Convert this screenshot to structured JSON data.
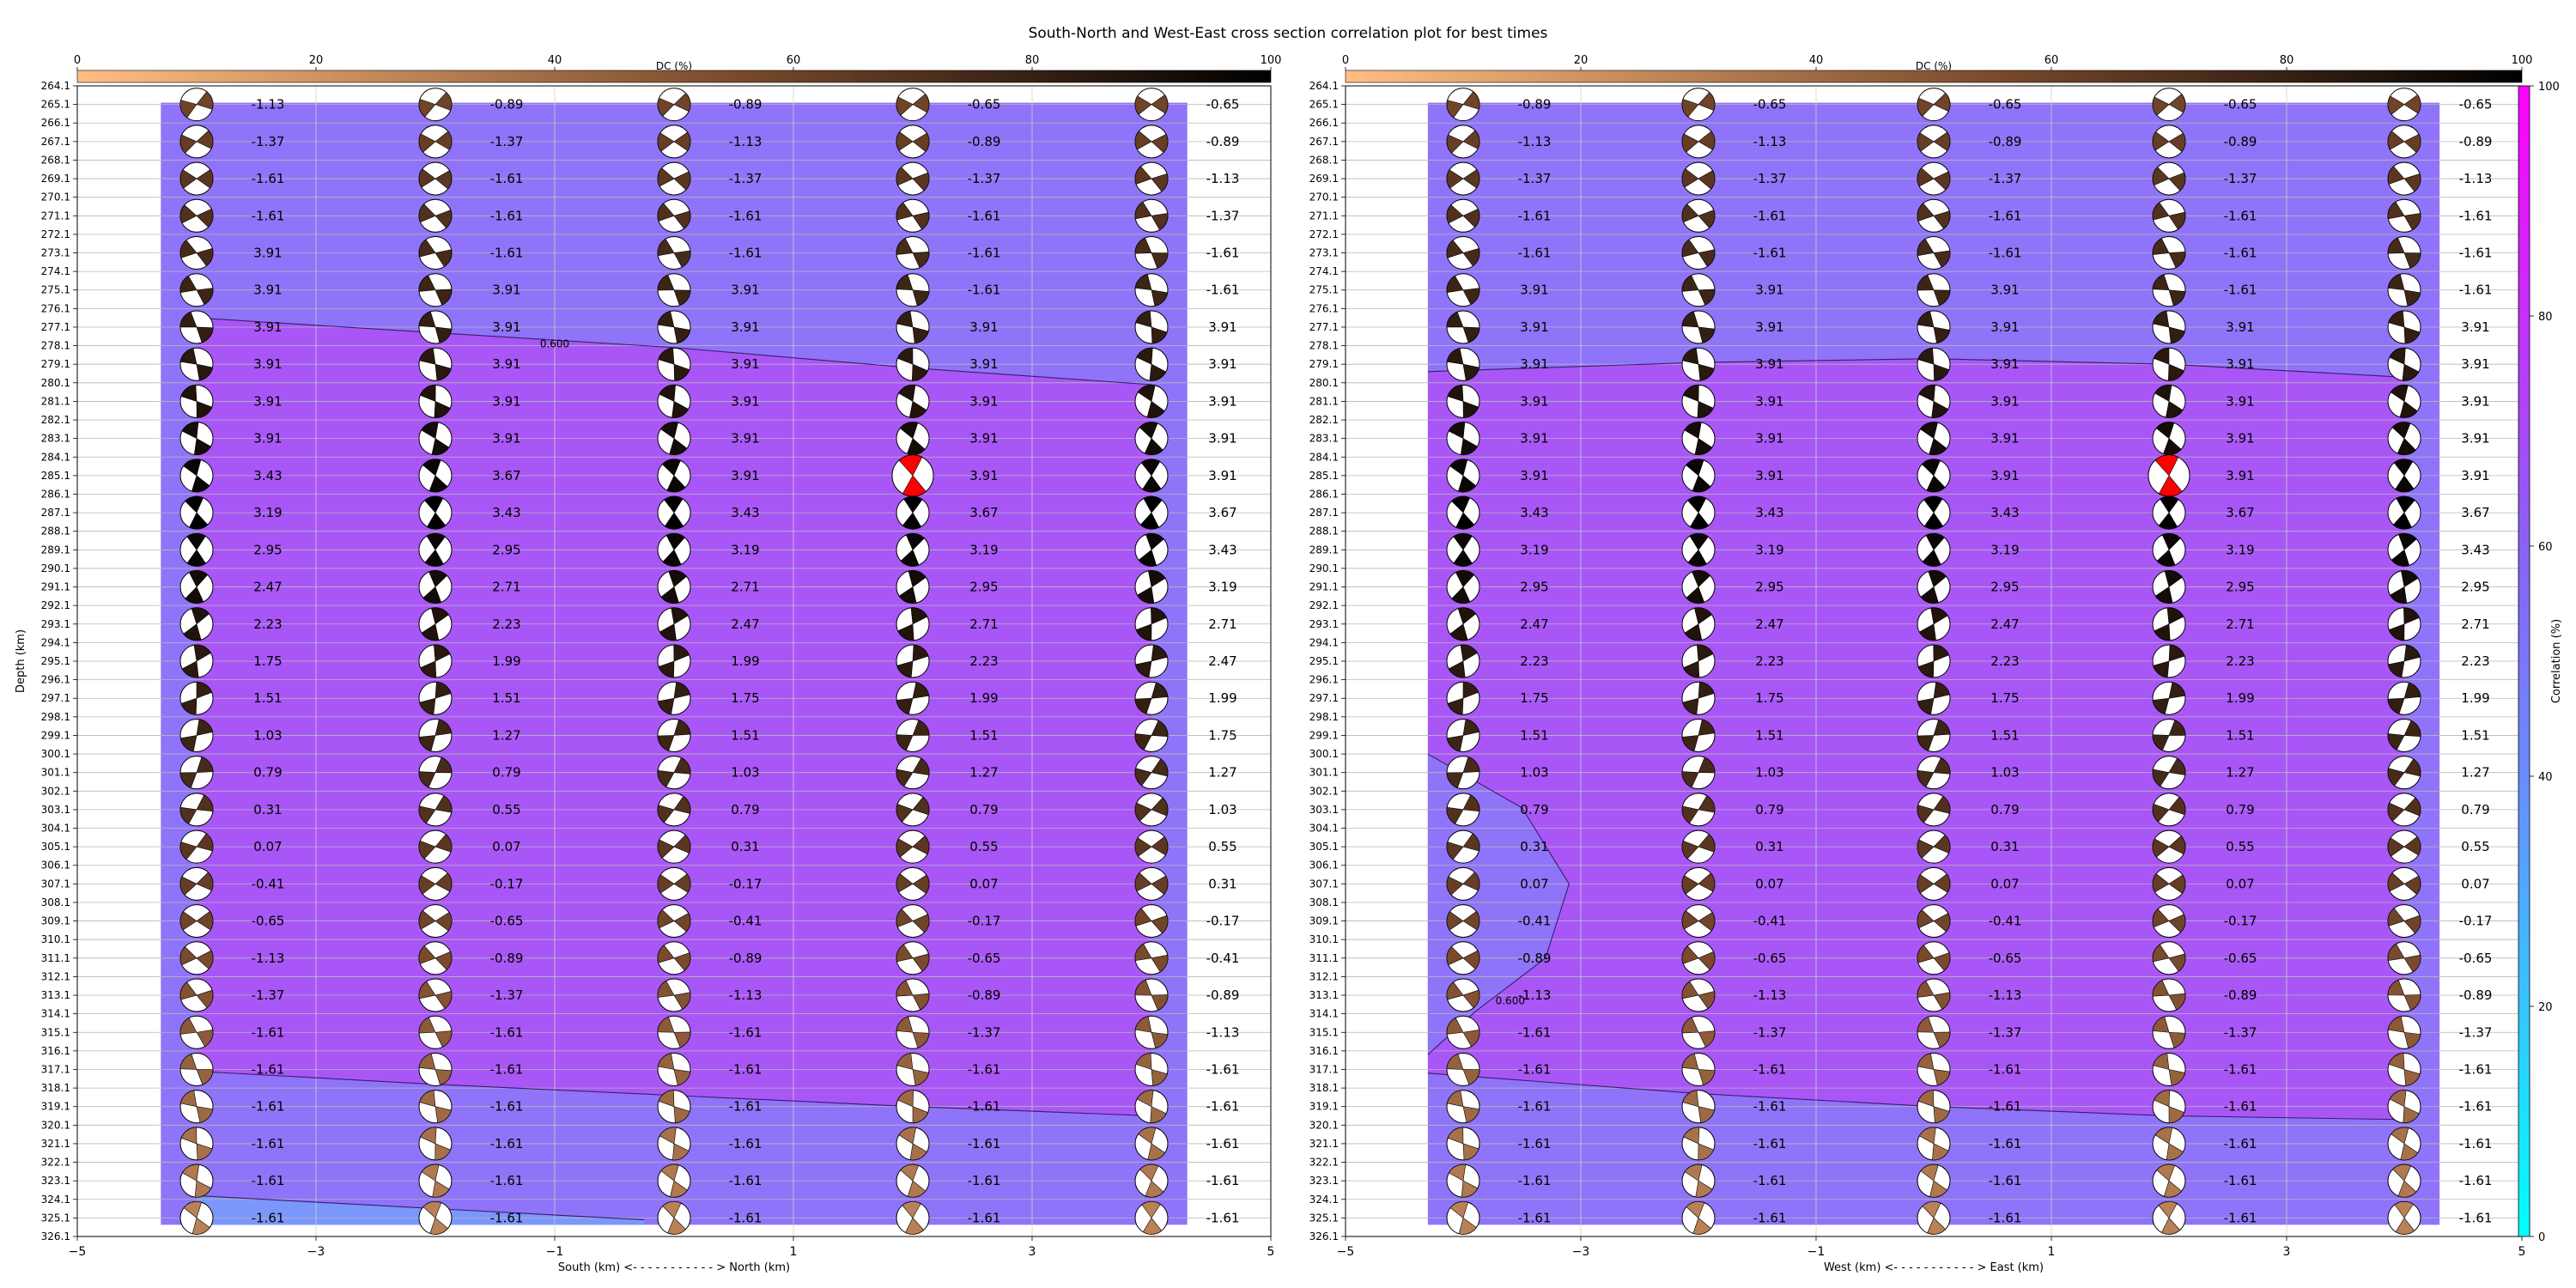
{
  "title": "South-North and West-East cross section correlation plot for best times",
  "colors": {
    "dc_low": "#ffbe82",
    "dc_mid": "#7a4a2c",
    "dc_high": "#000000",
    "corr_0": "#00ffff",
    "corr_40": "#6a8cff",
    "corr_60": "#8a62f4",
    "corr_100": "#ff00ff",
    "best": "#ff0000"
  },
  "dc_colorbar": {
    "label": "DC (%)",
    "ticks": [
      0,
      20,
      40,
      60,
      80,
      100
    ]
  },
  "corr_colorbar": {
    "label": "Correlation (%)",
    "ticks": [
      0,
      20,
      40,
      60,
      80,
      100
    ]
  },
  "chart_data": [
    {
      "type": "scatter",
      "panel": "south-north",
      "xlabel": "South (km) <- - - - - - - - - - - > North (km)",
      "ylabel": "Depth (km)",
      "xlim": [
        -5,
        5
      ],
      "ylim": [
        326.1,
        264.1
      ],
      "x_ticks": [
        -5,
        -3,
        -1,
        1,
        3,
        5
      ],
      "x_tick_labels": [
        "−5",
        "−3",
        "−1",
        "1",
        "3",
        "5"
      ],
      "depth_tick_labels": [
        "264.1",
        "265.1",
        "266.1",
        "267.1",
        "268.1",
        "269.1",
        "270.1",
        "271.1",
        "272.1",
        "273.1",
        "274.1",
        "275.1",
        "276.1",
        "277.1",
        "278.1",
        "279.1",
        "280.1",
        "281.1",
        "282.1",
        "283.1",
        "284.1",
        "285.1",
        "286.1",
        "287.1",
        "288.1",
        "289.1",
        "290.1",
        "291.1",
        "292.1",
        "293.1",
        "294.1",
        "295.1",
        "296.1",
        "297.1",
        "298.1",
        "299.1",
        "300.1",
        "301.1",
        "302.1",
        "303.1",
        "304.1",
        "305.1",
        "306.1",
        "307.1",
        "308.1",
        "309.1",
        "310.1",
        "311.1",
        "312.1",
        "313.1",
        "314.1",
        "315.1",
        "316.1",
        "317.1",
        "318.1",
        "319.1",
        "320.1",
        "321.1",
        "322.1",
        "323.1",
        "324.1",
        "325.1",
        "326.1"
      ],
      "x": [
        -4,
        -2,
        0,
        2,
        4
      ],
      "depths": [
        265.1,
        267.1,
        269.1,
        271.1,
        273.1,
        275.1,
        277.1,
        279.1,
        281.1,
        283.1,
        285.1,
        287.1,
        289.1,
        291.1,
        293.1,
        295.1,
        297.1,
        299.1,
        301.1,
        303.1,
        305.1,
        307.1,
        309.1,
        311.1,
        313.1,
        315.1,
        317.1,
        319.1,
        321.1,
        323.1,
        325.1
      ],
      "times": [
        [
          "-1.13",
          "-0.89",
          "-0.89",
          "-0.65",
          "-0.65"
        ],
        [
          "-1.37",
          "-1.37",
          "-1.13",
          "-0.89",
          "-0.89"
        ],
        [
          "-1.61",
          "-1.61",
          "-1.37",
          "-1.37",
          "-1.13"
        ],
        [
          "-1.61",
          "-1.61",
          "-1.61",
          "-1.61",
          "-1.37"
        ],
        [
          "3.91",
          "-1.61",
          "-1.61",
          "-1.61",
          "-1.61"
        ],
        [
          "3.91",
          "3.91",
          "3.91",
          "-1.61",
          "-1.61"
        ],
        [
          "3.91",
          "3.91",
          "3.91",
          "3.91",
          "3.91"
        ],
        [
          "3.91",
          "3.91",
          "3.91",
          "3.91",
          "3.91"
        ],
        [
          "3.91",
          "3.91",
          "3.91",
          "3.91",
          "3.91"
        ],
        [
          "3.91",
          "3.91",
          "3.91",
          "3.91",
          "3.91"
        ],
        [
          "3.43",
          "3.67",
          "3.91",
          "3.91",
          "3.91"
        ],
        [
          "3.19",
          "3.43",
          "3.43",
          "3.67",
          "3.67"
        ],
        [
          "2.95",
          "2.95",
          "3.19",
          "3.19",
          "3.43"
        ],
        [
          "2.47",
          "2.71",
          "2.71",
          "2.95",
          "3.19"
        ],
        [
          "2.23",
          "2.23",
          "2.47",
          "2.71",
          "2.71"
        ],
        [
          "1.75",
          "1.99",
          "1.99",
          "2.23",
          "2.47"
        ],
        [
          "1.51",
          "1.51",
          "1.75",
          "1.99",
          "1.99"
        ],
        [
          "1.03",
          "1.27",
          "1.51",
          "1.51",
          "1.75"
        ],
        [
          "0.79",
          "0.79",
          "1.03",
          "1.27",
          "1.27"
        ],
        [
          "0.31",
          "0.55",
          "0.79",
          "0.79",
          "1.03"
        ],
        [
          "0.07",
          "0.07",
          "0.31",
          "0.55",
          "0.55"
        ],
        [
          "-0.41",
          "-0.17",
          "-0.17",
          "0.07",
          "0.31"
        ],
        [
          "-0.65",
          "-0.65",
          "-0.41",
          "-0.17",
          "-0.17"
        ],
        [
          "-1.13",
          "-0.89",
          "-0.89",
          "-0.65",
          "-0.41"
        ],
        [
          "-1.37",
          "-1.37",
          "-1.13",
          "-0.89",
          "-0.89"
        ],
        [
          "-1.61",
          "-1.61",
          "-1.61",
          "-1.37",
          "-1.13"
        ],
        [
          "-1.61",
          "-1.61",
          "-1.61",
          "-1.61",
          "-1.61"
        ],
        [
          "-1.61",
          "-1.61",
          "-1.61",
          "-1.61",
          "-1.61"
        ],
        [
          "-1.61",
          "-1.61",
          "-1.61",
          "-1.61",
          "-1.61"
        ],
        [
          "-1.61",
          "-1.61",
          "-1.61",
          "-1.61",
          "-1.61"
        ],
        [
          "-1.61",
          "-1.61",
          "-1.61",
          "-1.61",
          "-1.61"
        ]
      ],
      "best_mechanism": {
        "x": 2,
        "depth": 285.1
      },
      "contour_label": "0.600",
      "contour_label_position": {
        "x": -1,
        "depth": 278.0
      },
      "contours": [
        {
          "level": 0.6,
          "points": [
            [
              -4,
              276.6
            ],
            [
              -2,
              277.4
            ],
            [
              0,
              278.2
            ],
            [
              2,
              279.3
            ],
            [
              4,
              280.2
            ]
          ]
        },
        {
          "level": 0.6,
          "points": [
            [
              -4,
              317.2
            ],
            [
              -2,
              317.9
            ],
            [
              0,
              318.5
            ],
            [
              2,
              319.1
            ],
            [
              4,
              319.6
            ]
          ]
        },
        {
          "level": 0.6,
          "points": [
            [
              -4,
              323.9
            ],
            [
              -2,
              324.6
            ],
            [
              -0.25,
              325.2
            ]
          ]
        }
      ]
    },
    {
      "type": "scatter",
      "panel": "west-east",
      "xlabel": "West (km) <- - - - - - - - - - - > East (km)",
      "ylabel": "",
      "xlim": [
        -5,
        5
      ],
      "ylim": [
        326.1,
        264.1
      ],
      "x_ticks": [
        -5,
        -3,
        -1,
        1,
        3,
        5
      ],
      "x_tick_labels": [
        "−5",
        "−3",
        "−1",
        "1",
        "3",
        "5"
      ],
      "depth_tick_labels": [
        "264.1",
        "265.1",
        "266.1",
        "267.1",
        "268.1",
        "269.1",
        "270.1",
        "271.1",
        "272.1",
        "273.1",
        "274.1",
        "275.1",
        "276.1",
        "277.1",
        "278.1",
        "279.1",
        "280.1",
        "281.1",
        "282.1",
        "283.1",
        "284.1",
        "285.1",
        "286.1",
        "287.1",
        "288.1",
        "289.1",
        "290.1",
        "291.1",
        "292.1",
        "293.1",
        "294.1",
        "295.1",
        "296.1",
        "297.1",
        "298.1",
        "299.1",
        "300.1",
        "301.1",
        "302.1",
        "303.1",
        "304.1",
        "305.1",
        "306.1",
        "307.1",
        "308.1",
        "309.1",
        "310.1",
        "311.1",
        "312.1",
        "313.1",
        "314.1",
        "315.1",
        "316.1",
        "317.1",
        "318.1",
        "319.1",
        "320.1",
        "321.1",
        "322.1",
        "323.1",
        "324.1",
        "325.1",
        "326.1"
      ],
      "x": [
        -4,
        -2,
        0,
        2,
        4
      ],
      "depths": [
        265.1,
        267.1,
        269.1,
        271.1,
        273.1,
        275.1,
        277.1,
        279.1,
        281.1,
        283.1,
        285.1,
        287.1,
        289.1,
        291.1,
        293.1,
        295.1,
        297.1,
        299.1,
        301.1,
        303.1,
        305.1,
        307.1,
        309.1,
        311.1,
        313.1,
        315.1,
        317.1,
        319.1,
        321.1,
        323.1,
        325.1
      ],
      "times": [
        [
          "-0.89",
          "-0.65",
          "-0.65",
          "-0.65",
          "-0.65"
        ],
        [
          "-1.13",
          "-1.13",
          "-0.89",
          "-0.89",
          "-0.89"
        ],
        [
          "-1.37",
          "-1.37",
          "-1.37",
          "-1.37",
          "-1.13"
        ],
        [
          "-1.61",
          "-1.61",
          "-1.61",
          "-1.61",
          "-1.61"
        ],
        [
          "-1.61",
          "-1.61",
          "-1.61",
          "-1.61",
          "-1.61"
        ],
        [
          "3.91",
          "3.91",
          "3.91",
          "-1.61",
          "-1.61"
        ],
        [
          "3.91",
          "3.91",
          "3.91",
          "3.91",
          "3.91"
        ],
        [
          "3.91",
          "3.91",
          "3.91",
          "3.91",
          "3.91"
        ],
        [
          "3.91",
          "3.91",
          "3.91",
          "3.91",
          "3.91"
        ],
        [
          "3.91",
          "3.91",
          "3.91",
          "3.91",
          "3.91"
        ],
        [
          "3.91",
          "3.91",
          "3.91",
          "3.91",
          "3.91"
        ],
        [
          "3.43",
          "3.43",
          "3.43",
          "3.67",
          "3.67"
        ],
        [
          "3.19",
          "3.19",
          "3.19",
          "3.19",
          "3.43"
        ],
        [
          "2.95",
          "2.95",
          "2.95",
          "2.95",
          "2.95"
        ],
        [
          "2.47",
          "2.47",
          "2.47",
          "2.71",
          "2.71"
        ],
        [
          "2.23",
          "2.23",
          "2.23",
          "2.23",
          "2.23"
        ],
        [
          "1.75",
          "1.75",
          "1.75",
          "1.99",
          "1.99"
        ],
        [
          "1.51",
          "1.51",
          "1.51",
          "1.51",
          "1.51"
        ],
        [
          "1.03",
          "1.03",
          "1.03",
          "1.27",
          "1.27"
        ],
        [
          "0.79",
          "0.79",
          "0.79",
          "0.79",
          "0.79"
        ],
        [
          "0.31",
          "0.31",
          "0.31",
          "0.55",
          "0.55"
        ],
        [
          "0.07",
          "0.07",
          "0.07",
          "0.07",
          "0.07"
        ],
        [
          "-0.41",
          "-0.41",
          "-0.41",
          "-0.17",
          "-0.17"
        ],
        [
          "-0.89",
          "-0.65",
          "-0.65",
          "-0.65",
          "-0.65"
        ],
        [
          "-1.13",
          "-1.13",
          "-1.13",
          "-0.89",
          "-0.89"
        ],
        [
          "-1.61",
          "-1.37",
          "-1.37",
          "-1.37",
          "-1.37"
        ],
        [
          "-1.61",
          "-1.61",
          "-1.61",
          "-1.61",
          "-1.61"
        ],
        [
          "-1.61",
          "-1.61",
          "-1.61",
          "-1.61",
          "-1.61"
        ],
        [
          "-1.61",
          "-1.61",
          "-1.61",
          "-1.61",
          "-1.61"
        ],
        [
          "-1.61",
          "-1.61",
          "-1.61",
          "-1.61",
          "-1.61"
        ],
        [
          "-1.61",
          "-1.61",
          "-1.61",
          "-1.61",
          "-1.61"
        ]
      ],
      "best_mechanism": {
        "x": 2,
        "depth": 285.1
      },
      "contour_label": "0.600",
      "contour_label_position": {
        "x": -3.6,
        "depth": 313.4
      },
      "contours": [
        {
          "level": 0.6,
          "points": [
            [
              -4.3,
              279.5
            ],
            [
              -2,
              279.0
            ],
            [
              0,
              278.8
            ],
            [
              2,
              279.1
            ],
            [
              4,
              279.8
            ]
          ]
        },
        {
          "level": 0.6,
          "points": [
            [
              -4.3,
              300.1
            ],
            [
              -3.5,
              303.0
            ],
            [
              -3.1,
              307.1
            ],
            [
              -3.3,
              311.1
            ],
            [
              -3.9,
              314.0
            ],
            [
              -4.3,
              316.3
            ]
          ]
        },
        {
          "level": 0.6,
          "points": [
            [
              -4.3,
              317.3
            ],
            [
              -2,
              318.4
            ],
            [
              0,
              319.1
            ],
            [
              2,
              319.6
            ],
            [
              4,
              319.8
            ]
          ]
        }
      ]
    }
  ]
}
